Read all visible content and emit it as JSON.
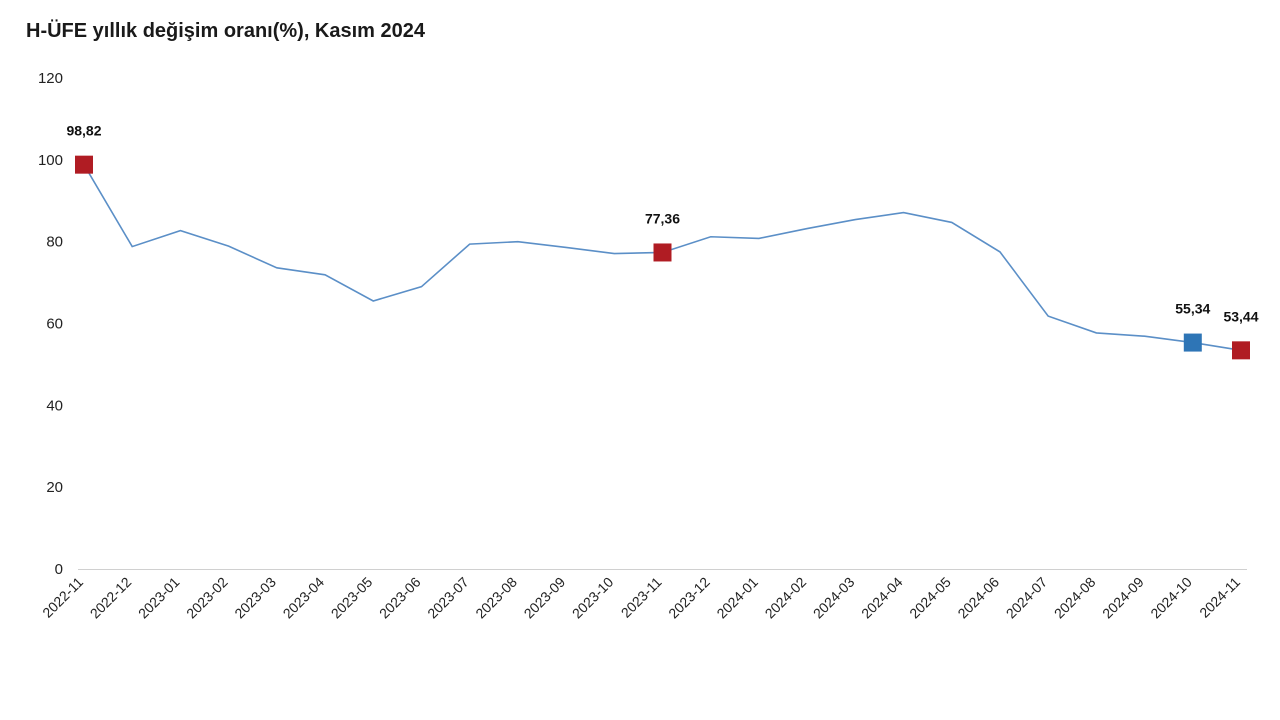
{
  "chart_data": {
    "type": "line",
    "title": "H-ÜFE yıllık değişim oranı(%), Kasım 2024",
    "xlabel": "",
    "ylabel": "",
    "ylim": [
      0,
      120
    ],
    "yticks": [
      0,
      20,
      40,
      60,
      80,
      100,
      120
    ],
    "grid": false,
    "categories": [
      "2022-11",
      "2022-12",
      "2023-01",
      "2023-02",
      "2023-03",
      "2023-04",
      "2023-05",
      "2023-06",
      "2023-07",
      "2023-08",
      "2023-09",
      "2023-10",
      "2023-11",
      "2023-12",
      "2024-01",
      "2024-02",
      "2024-03",
      "2024-04",
      "2024-05",
      "2024-06",
      "2024-07",
      "2024-08",
      "2024-09",
      "2024-10",
      "2024-11"
    ],
    "series": [
      {
        "name": "H-ÜFE",
        "color": "#5b8fc7",
        "values": [
          98.82,
          78.8,
          82.7,
          78.9,
          73.6,
          71.9,
          65.5,
          69.0,
          79.4,
          80.0,
          78.6,
          77.1,
          77.36,
          81.2,
          80.8,
          83.2,
          85.4,
          87.1,
          84.7,
          77.5,
          61.8,
          57.7,
          56.9,
          55.34,
          53.44
        ]
      }
    ],
    "highlights": [
      {
        "index": 0,
        "label": "98,82",
        "color": "#b01c23"
      },
      {
        "index": 12,
        "label": "77,36",
        "color": "#b01c23"
      },
      {
        "index": 23,
        "label": "55,34",
        "color": "#2e75b6"
      },
      {
        "index": 24,
        "label": "53,44",
        "color": "#b01c23"
      }
    ]
  }
}
